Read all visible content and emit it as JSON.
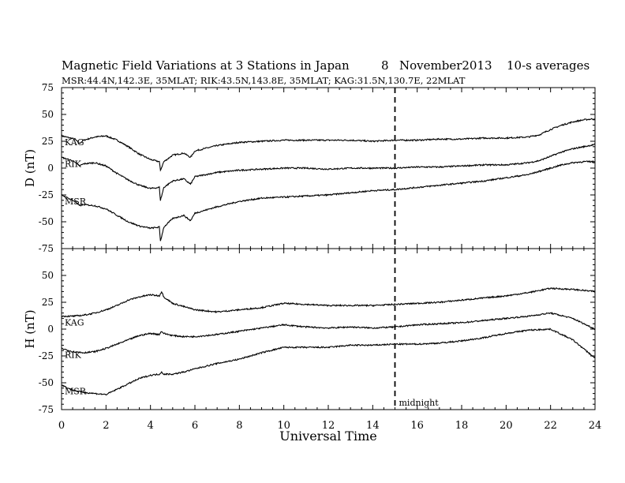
{
  "header": {
    "title": "Magnetic Field Variations at 3 Stations in Japan",
    "day": "8",
    "month_year": "November2013",
    "averaging": "10-s averages",
    "stations_line": "MSR:44.4N,142.3E, 35MLAT;  RIK:43.5N,143.8E, 35MLAT;  KAG:31.5N,130.7E, 22MLAT"
  },
  "colors": {
    "trace": "#000000",
    "frame": "#000000",
    "background": "#ffffff"
  },
  "chart_data": [
    {
      "type": "line",
      "ylabel": "D (nT)",
      "xlabel": "",
      "xlim": [
        0,
        24
      ],
      "ylim": [
        -75,
        75
      ],
      "yticks": [
        -75,
        -50,
        -25,
        0,
        25,
        50,
        75
      ],
      "annotations": [
        {
          "text": "",
          "x": 15
        }
      ],
      "series": [
        {
          "name": "KAG",
          "x": [
            0,
            0.6,
            0.8,
            1,
            1.5,
            2,
            2.5,
            3,
            3.5,
            4,
            4.4,
            4.45,
            4.6,
            5,
            5.5,
            5.8,
            6,
            7,
            8,
            9,
            10,
            11,
            12,
            13,
            14,
            15,
            16,
            17,
            18,
            19,
            20,
            21,
            21.5,
            22,
            22.5,
            23,
            23.5,
            24
          ],
          "y": [
            30,
            27,
            23,
            26,
            29,
            30,
            26,
            20,
            13,
            8,
            6,
            -2,
            6,
            12,
            14,
            10,
            16,
            21,
            24,
            25,
            26,
            26,
            26,
            26,
            25,
            26,
            26,
            27,
            27,
            28,
            28,
            29,
            31,
            36,
            40,
            43,
            45,
            46
          ]
        },
        {
          "name": "RIK",
          "x": [
            0,
            0.6,
            0.8,
            1,
            1.5,
            2,
            2.5,
            3,
            3.5,
            4,
            4.4,
            4.45,
            4.6,
            5,
            5.5,
            5.8,
            6,
            7,
            8,
            9,
            10,
            11,
            12,
            13,
            14,
            15,
            16,
            17,
            18,
            19,
            20,
            21,
            21.5,
            22,
            22.5,
            23,
            23.5,
            24
          ],
          "y": [
            10,
            6,
            2,
            4,
            5,
            2,
            -5,
            -11,
            -16,
            -19,
            -18,
            -30,
            -18,
            -12,
            -10,
            -15,
            -8,
            -4,
            -2,
            -1,
            0,
            0,
            -1,
            0,
            0,
            0,
            1,
            1,
            2,
            3,
            3,
            5,
            7,
            11,
            15,
            18,
            20,
            22
          ]
        },
        {
          "name": "MSR",
          "x": [
            0,
            0.6,
            0.8,
            1,
            1.5,
            2,
            2.5,
            3,
            3.5,
            4,
            4.4,
            4.45,
            4.6,
            5,
            5.5,
            5.8,
            6,
            7,
            8,
            9,
            10,
            11,
            12,
            13,
            14,
            15,
            16,
            17,
            18,
            19,
            20,
            21,
            21.5,
            22,
            22.5,
            23,
            23.5,
            24
          ],
          "y": [
            -25,
            -31,
            -35,
            -34,
            -35,
            -38,
            -44,
            -50,
            -54,
            -56,
            -55,
            -68,
            -55,
            -47,
            -44,
            -49,
            -42,
            -36,
            -31,
            -28,
            -27,
            -26,
            -25,
            -23,
            -21,
            -20,
            -18,
            -16,
            -14,
            -12,
            -9,
            -6,
            -3,
            0,
            3,
            5,
            6,
            6
          ]
        }
      ]
    },
    {
      "type": "line",
      "ylabel": "H (nT)",
      "xlabel": "Universal Time",
      "xlim": [
        0,
        24
      ],
      "ylim": [
        -75,
        75
      ],
      "xticks": [
        0,
        2,
        4,
        6,
        8,
        10,
        12,
        14,
        16,
        18,
        20,
        22,
        24
      ],
      "yticks": [
        -75,
        -50,
        -25,
        0,
        25,
        50,
        75
      ],
      "annotations": [
        {
          "text": "midnight",
          "x": 15
        }
      ],
      "series": [
        {
          "name": "KAG",
          "x": [
            0,
            0.5,
            1,
            1.5,
            2,
            2.5,
            3,
            3.5,
            4,
            4.4,
            4.5,
            4.6,
            5,
            5.5,
            6,
            7,
            8,
            9,
            10,
            11,
            12,
            13,
            14,
            15,
            16,
            17,
            18,
            19,
            20,
            21,
            22,
            23,
            24
          ],
          "y": [
            12,
            12,
            13,
            15,
            18,
            22,
            27,
            30,
            32,
            31,
            35,
            30,
            24,
            21,
            18,
            16,
            18,
            20,
            24,
            23,
            22,
            22,
            22,
            23,
            24,
            25,
            27,
            29,
            31,
            34,
            38,
            37,
            35
          ]
        },
        {
          "name": "RIK",
          "x": [
            0,
            0.5,
            1,
            1.5,
            2,
            2.5,
            3,
            3.5,
            4,
            4.4,
            4.5,
            4.6,
            5,
            5.5,
            6,
            7,
            8,
            9,
            10,
            11,
            12,
            13,
            14,
            15,
            16,
            17,
            18,
            19,
            20,
            21,
            22,
            23,
            24
          ],
          "y": [
            -18,
            -21,
            -22,
            -21,
            -18,
            -14,
            -10,
            -6,
            -4,
            -5,
            -2,
            -4,
            -6,
            -7,
            -7,
            -5,
            -2,
            1,
            4,
            2,
            1,
            2,
            1,
            2,
            4,
            5,
            6,
            8,
            10,
            12,
            15,
            10,
            0
          ]
        },
        {
          "name": "MSR",
          "x": [
            0,
            0.5,
            1,
            1.5,
            2,
            2.5,
            3,
            3.5,
            4,
            4.4,
            4.5,
            4.6,
            5,
            5.5,
            6,
            7,
            8,
            9,
            10,
            11,
            12,
            13,
            14,
            15,
            16,
            17,
            18,
            19,
            20,
            21,
            22,
            23,
            24
          ],
          "y": [
            -52,
            -57,
            -59,
            -60,
            -61,
            -56,
            -51,
            -46,
            -43,
            -42,
            -40,
            -42,
            -42,
            -40,
            -37,
            -32,
            -28,
            -22,
            -17,
            -17,
            -17,
            -15,
            -15,
            -14,
            -14,
            -13,
            -11,
            -8,
            -4,
            -1,
            0,
            -10,
            -27
          ]
        }
      ]
    }
  ]
}
